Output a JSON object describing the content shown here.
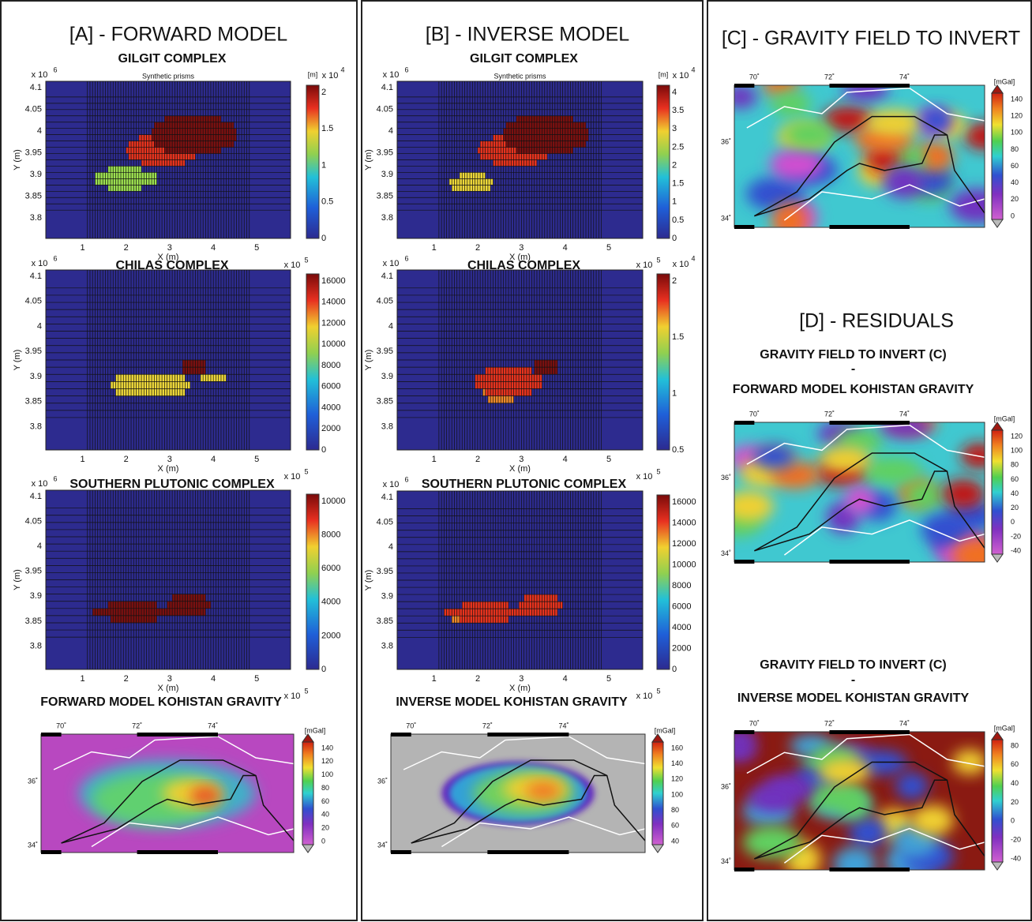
{
  "panels": [
    {
      "title": "[A] - FORWARD MODEL",
      "grids": [
        {
          "subtitle": "GILGIT COMPLEX",
          "note": "Synthetic prisms",
          "y_exp": [
            "x 10",
            "6"
          ],
          "yticks": [
            "4.1",
            "4.05",
            "4",
            "3.95",
            "3.9",
            "3.85",
            "3.8"
          ],
          "y_label": "Y (m)",
          "xticks": [
            "1",
            "2",
            "3",
            "4",
            "5"
          ],
          "x_label": "X (m)",
          "x_exp": [
            "x 10",
            "5"
          ],
          "cbar_unit": "[m]",
          "cbar_exp": [
            "x 10",
            "4"
          ],
          "cbar_ticks": [
            "2",
            "1.5",
            "1",
            "0.5",
            "0"
          ]
        },
        {
          "subtitle": "CHILAS COMPLEX",
          "y_exp": [
            "x 10",
            "6"
          ],
          "yticks": [
            "4.1",
            "4.05",
            "4",
            "3.95",
            "3.9",
            "3.85",
            "3.8"
          ],
          "y_label": "Y (m)",
          "xticks": [
            "1",
            "2",
            "3",
            "4",
            "5"
          ],
          "x_label": "X (m)",
          "x_exp": [
            "x 10",
            "5"
          ],
          "cbar_ticks": [
            "16000",
            "14000",
            "12000",
            "10000",
            "8000",
            "6000",
            "4000",
            "2000",
            "0"
          ]
        },
        {
          "subtitle": "SOUTHERN PLUTONIC COMPLEX",
          "y_exp": [
            "x 10",
            "6"
          ],
          "yticks": [
            "4.1",
            "4.05",
            "4",
            "3.95",
            "3.9",
            "3.85",
            "3.8"
          ],
          "y_label": "Y (m)",
          "xticks": [
            "1",
            "2",
            "3",
            "4",
            "5"
          ],
          "x_label": "X (m)",
          "x_exp": [
            "x 10",
            "5"
          ],
          "cbar_ticks": [
            "10000",
            "8000",
            "6000",
            "4000",
            "2000",
            "0"
          ]
        }
      ],
      "maps": [
        {
          "subtitle_lines": [
            "FORWARD MODEL KOHISTAN GRAVITY"
          ],
          "lon_ticks": [
            "70˚",
            "72˚",
            "74˚"
          ],
          "lat_ticks": [
            "36˚",
            "34˚"
          ],
          "unit": "[mGal]",
          "cbar_ticks": [
            "140",
            "120",
            "100",
            "80",
            "60",
            "40",
            "20",
            "0"
          ]
        }
      ]
    },
    {
      "title": "[B]  - INVERSE MODEL",
      "grids": [
        {
          "subtitle": "GILGIT COMPLEX",
          "note": "Synthetic prisms",
          "y_exp": [
            "x 10",
            "6"
          ],
          "yticks": [
            "4.1",
            "4.05",
            "4",
            "3.95",
            "3.9",
            "3.85",
            "3.8"
          ],
          "y_label": "Y (m)",
          "xticks": [
            "1",
            "2",
            "3",
            "4",
            "5"
          ],
          "x_label": "X (m)",
          "x_exp": [
            "x 10",
            "5"
          ],
          "cbar_unit": "[m]",
          "cbar_exp": [
            "x 10",
            "4"
          ],
          "cbar_ticks": [
            "4",
            "3.5",
            "3",
            "2.5",
            "2",
            "1.5",
            "1",
            "0.5",
            "0"
          ]
        },
        {
          "subtitle": "CHILAS COMPLEX",
          "y_exp": [
            "x 10",
            "6"
          ],
          "yticks": [
            "4.1",
            "4.05",
            "4",
            "3.95",
            "3.9",
            "3.85",
            "3.8"
          ],
          "y_label": "Y (m)",
          "xticks": [
            "1",
            "2",
            "3",
            "4",
            "5"
          ],
          "x_label": "X (m)",
          "x_exp": [
            "x 10",
            "5"
          ],
          "cbar_exp": [
            "x 10",
            "4"
          ],
          "cbar_ticks": [
            "2",
            "1.5",
            "1",
            "0.5"
          ]
        },
        {
          "subtitle": "SOUTHERN PLUTONIC COMPLEX",
          "y_exp": [
            "x 10",
            "6"
          ],
          "yticks": [
            "4.1",
            "4.05",
            "4",
            "3.95",
            "3.9",
            "3.85",
            "3.8"
          ],
          "y_label": "Y (m)",
          "xticks": [
            "1",
            "2",
            "3",
            "4",
            "5"
          ],
          "x_label": "X (m)",
          "x_exp": [
            "x 10",
            "5"
          ],
          "cbar_ticks": [
            "16000",
            "14000",
            "12000",
            "10000",
            "8000",
            "6000",
            "4000",
            "2000",
            "0"
          ]
        }
      ],
      "maps": [
        {
          "subtitle_lines": [
            "INVERSE MODEL KOHISTAN GRAVITY"
          ],
          "lon_ticks": [
            "70˚",
            "72˚",
            "74˚"
          ],
          "lat_ticks": [
            "36˚",
            "34˚"
          ],
          "unit": "[mGal]",
          "cbar_ticks": [
            "160",
            "140",
            "120",
            "100",
            "80",
            "60",
            "40"
          ]
        }
      ]
    },
    {
      "title": "[C]  - GRAVITY FIELD TO INVERT",
      "maps": [
        {
          "lon_ticks": [
            "70˚",
            "72˚",
            "74˚"
          ],
          "lat_ticks": [
            "36˚",
            "34˚"
          ],
          "unit": "[mGal]",
          "cbar_ticks": [
            "140",
            "120",
            "100",
            "80",
            "60",
            "40",
            "20",
            "0"
          ]
        }
      ]
    },
    {
      "title": "[D]  - RESIDUALS",
      "maps": [
        {
          "subtitle_lines": [
            "GRAVITY FIELD TO INVERT (C)",
            "-",
            "FORWARD MODEL KOHISTAN GRAVITY"
          ],
          "lon_ticks": [
            "70˚",
            "72˚",
            "74˚"
          ],
          "lat_ticks": [
            "36˚",
            "34˚"
          ],
          "unit": "[mGal]",
          "cbar_ticks": [
            "120",
            "100",
            "80",
            "60",
            "40",
            "20",
            "0",
            "-20",
            "-40"
          ]
        },
        {
          "subtitle_lines": [
            "GRAVITY FIELD TO INVERT (C)",
            "-",
            "INVERSE MODEL KOHISTAN GRAVITY"
          ],
          "lon_ticks": [
            "70˚",
            "72˚",
            "74˚"
          ],
          "lat_ticks": [
            "36˚",
            "34˚"
          ],
          "unit": "[mGal]",
          "cbar_ticks": [
            "80",
            "60",
            "40",
            "20",
            "0",
            "-20",
            "-40"
          ]
        }
      ]
    }
  ]
}
